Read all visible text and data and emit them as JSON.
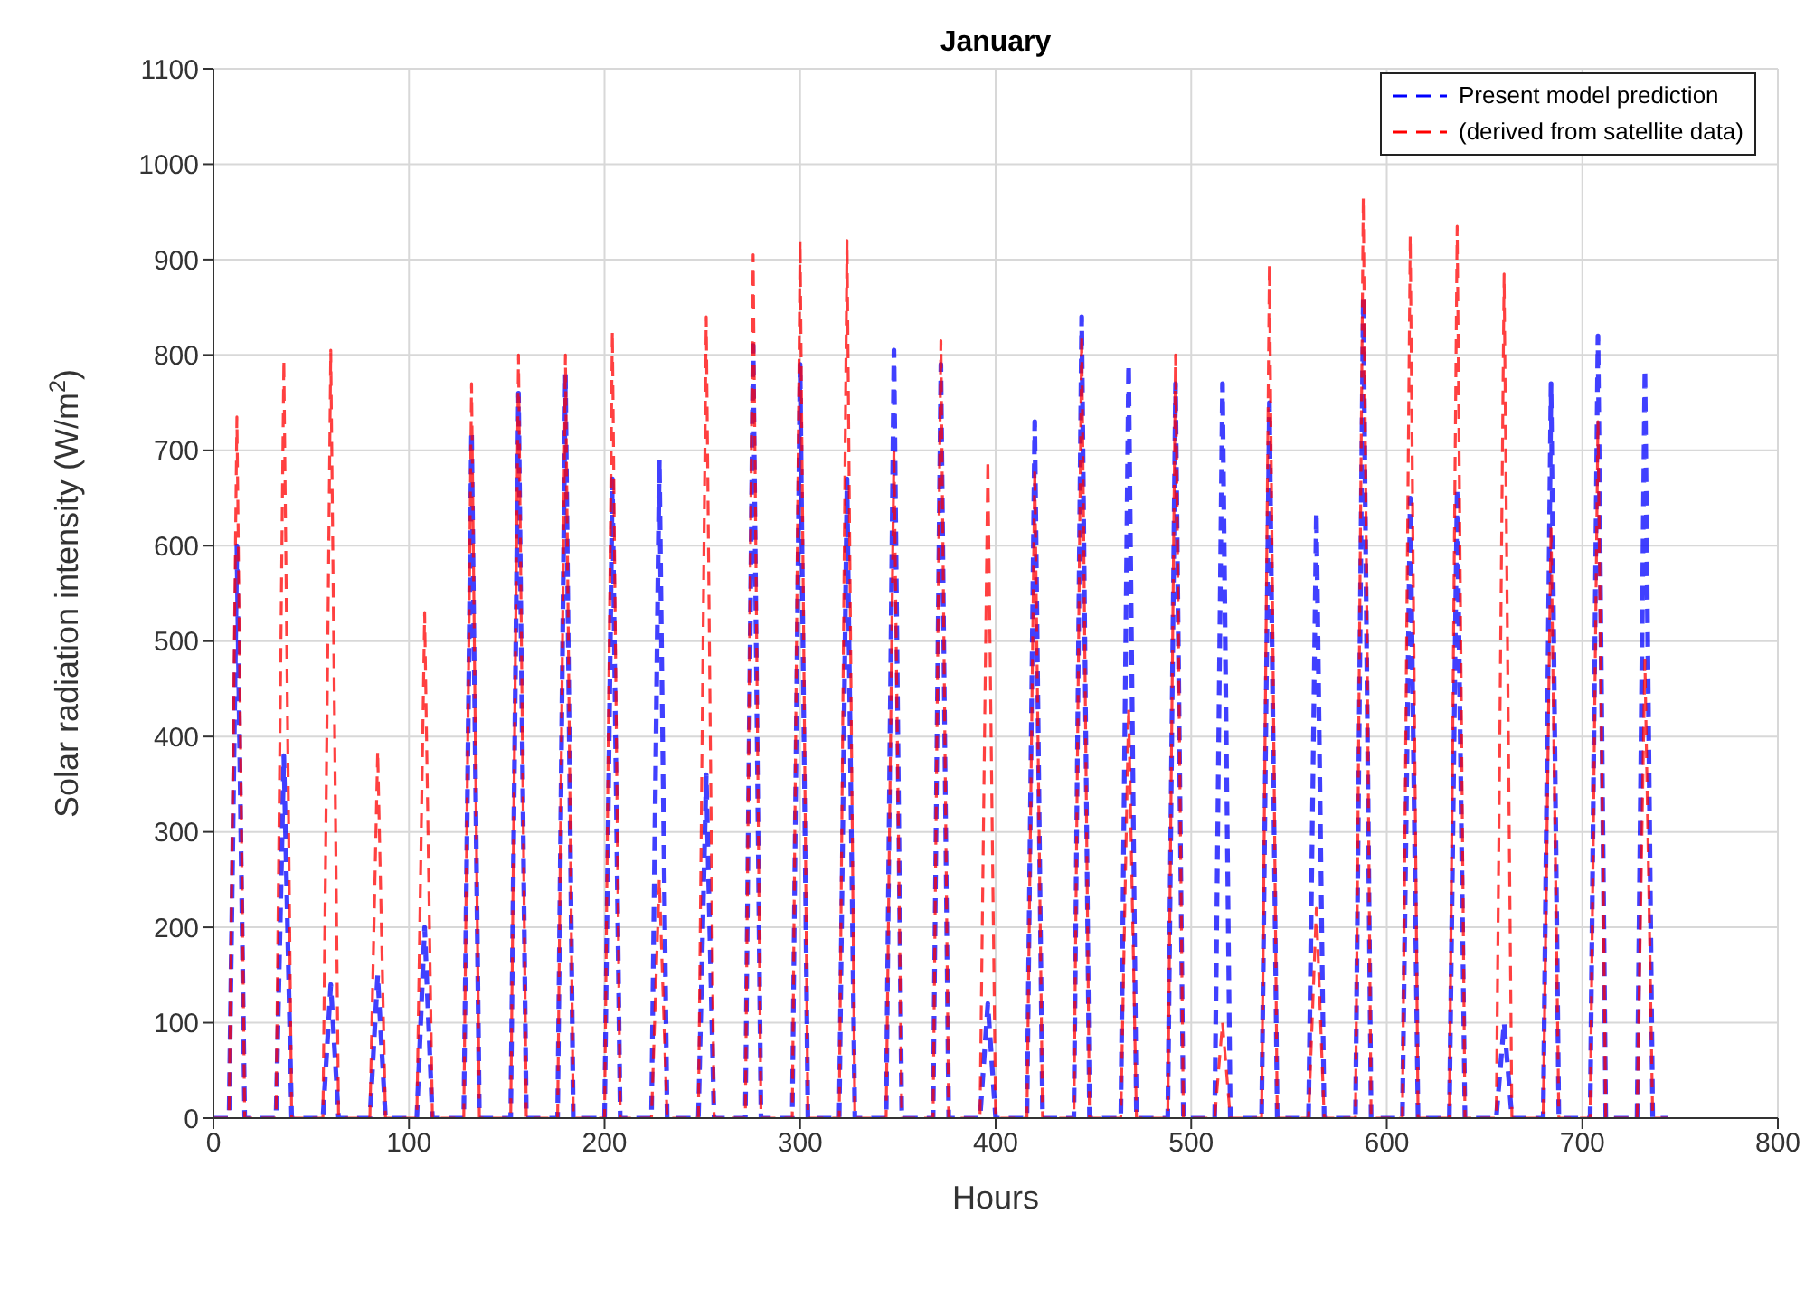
{
  "chart_data": {
    "type": "line",
    "title": "January",
    "xlabel": "Hours",
    "ylabel": "Solar radiation intensity (W/m$^{2}$)",
    "x": [
      0,
      8,
      12,
      16,
      32,
      36,
      40,
      56,
      60,
      64,
      80,
      84,
      88,
      104,
      108,
      112,
      128,
      132,
      136,
      152,
      156,
      160,
      176,
      180,
      184,
      200,
      204,
      208,
      224,
      228,
      232,
      248,
      252,
      256,
      272,
      276,
      280,
      296,
      300,
      304,
      320,
      324,
      328,
      344,
      348,
      352,
      368,
      372,
      376,
      392,
      396,
      400,
      416,
      420,
      424,
      440,
      444,
      448,
      464,
      468,
      472,
      488,
      492,
      496,
      512,
      516,
      520,
      536,
      540,
      544,
      560,
      564,
      568,
      584,
      588,
      592,
      608,
      612,
      616,
      632,
      636,
      640,
      656,
      660,
      664,
      680,
      684,
      688,
      704,
      708,
      712,
      728,
      732,
      736,
      744
    ],
    "series": [
      {
        "name": "Present model prediction",
        "color": "#0000ff",
        "values": [
          0,
          0,
          600,
          0,
          0,
          380,
          0,
          0,
          140,
          0,
          0,
          150,
          0,
          0,
          200,
          0,
          0,
          720,
          0,
          0,
          760,
          0,
          0,
          780,
          0,
          0,
          670,
          0,
          0,
          690,
          0,
          0,
          360,
          0,
          0,
          810,
          0,
          0,
          790,
          0,
          0,
          670,
          0,
          0,
          805,
          0,
          0,
          790,
          0,
          0,
          120,
          0,
          0,
          730,
          0,
          0,
          840,
          0,
          0,
          790,
          0,
          0,
          770,
          0,
          0,
          770,
          0,
          0,
          750,
          0,
          0,
          635,
          0,
          0,
          860,
          0,
          0,
          650,
          0,
          0,
          660,
          0,
          0,
          100,
          0,
          0,
          770,
          0,
          0,
          820,
          0,
          0,
          785,
          0,
          0
        ]
      },
      {
        "name": "(derived from satellite data)",
        "color": "#ff0000",
        "values": [
          0,
          0,
          735,
          0,
          0,
          795,
          0,
          0,
          805,
          0,
          0,
          385,
          0,
          0,
          530,
          0,
          0,
          770,
          0,
          0,
          800,
          0,
          0,
          800,
          0,
          0,
          825,
          0,
          0,
          250,
          0,
          0,
          840,
          0,
          0,
          905,
          0,
          0,
          920,
          0,
          0,
          920,
          0,
          0,
          700,
          0,
          0,
          815,
          0,
          0,
          690,
          0,
          0,
          680,
          0,
          0,
          820,
          0,
          0,
          430,
          0,
          0,
          800,
          0,
          0,
          100,
          0,
          0,
          895,
          0,
          0,
          220,
          0,
          0,
          965,
          0,
          0,
          925,
          0,
          0,
          935,
          0,
          0,
          885,
          0,
          0,
          620,
          0,
          0,
          730,
          0,
          0,
          480,
          0,
          0
        ]
      }
    ],
    "xlim": [
      0,
      800
    ],
    "xticks": [
      0,
      100,
      200,
      300,
      400,
      500,
      600,
      700,
      800
    ],
    "ylim": [
      0,
      1100
    ],
    "yticks": [
      0,
      100,
      200,
      300,
      400,
      500,
      600,
      700,
      800,
      900,
      1000,
      1100
    ],
    "grid": true,
    "legend": "top right",
    "marker": "none",
    "line_style": "dashed"
  }
}
